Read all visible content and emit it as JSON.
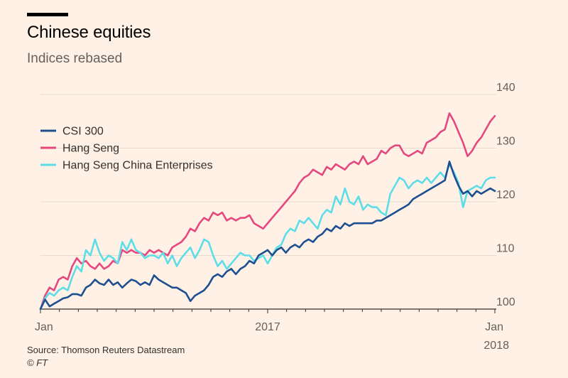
{
  "header": {
    "title": "Chinese equities",
    "subtitle": "Indices rebased"
  },
  "footer": {
    "source": "Source: Thomson Reuters Datastream",
    "credit": "© FT"
  },
  "chart_data": {
    "type": "line",
    "title": "Chinese equities",
    "subtitle": "Indices rebased",
    "xlabel": "",
    "ylabel": "",
    "ylim": [
      100,
      140
    ],
    "y_ticks": [
      100,
      110,
      120,
      130,
      140
    ],
    "xlim": [
      0,
      2
    ],
    "x_ticks": [
      {
        "value": 0,
        "label": "Jan",
        "label2": ""
      },
      {
        "value": 1,
        "label": "2017",
        "label2": ""
      },
      {
        "value": 2,
        "label": "Jan",
        "label2": "2018"
      }
    ],
    "grid": "horizontal",
    "legend_position": "top-left",
    "series": [
      {
        "name": "CSI 300",
        "color": "#1d4f91",
        "x": [
          0,
          0.02,
          0.04,
          0.06,
          0.08,
          0.1,
          0.12,
          0.14,
          0.16,
          0.18,
          0.2,
          0.22,
          0.24,
          0.26,
          0.28,
          0.3,
          0.32,
          0.34,
          0.36,
          0.38,
          0.4,
          0.42,
          0.44,
          0.46,
          0.48,
          0.5,
          0.52,
          0.54,
          0.56,
          0.58,
          0.6,
          0.62,
          0.64,
          0.66,
          0.68,
          0.7,
          0.72,
          0.74,
          0.76,
          0.78,
          0.8,
          0.82,
          0.84,
          0.86,
          0.88,
          0.9,
          0.92,
          0.94,
          0.96,
          0.98,
          1.0,
          1.02,
          1.04,
          1.06,
          1.08,
          1.1,
          1.12,
          1.14,
          1.16,
          1.18,
          1.2,
          1.22,
          1.24,
          1.26,
          1.28,
          1.3,
          1.32,
          1.34,
          1.36,
          1.38,
          1.4,
          1.42,
          1.44,
          1.46,
          1.48,
          1.5,
          1.52,
          1.54,
          1.56,
          1.58,
          1.6,
          1.62,
          1.64,
          1.66,
          1.68,
          1.7,
          1.72,
          1.74,
          1.76,
          1.78,
          1.8,
          1.82,
          1.84,
          1.86,
          1.88,
          1.9,
          1.92,
          1.94,
          1.96,
          1.98,
          2.0
        ],
        "values": [
          100,
          101.8,
          100.5,
          101,
          101.5,
          102,
          102.2,
          102.8,
          102.8,
          102.5,
          104,
          104.5,
          105.5,
          104.8,
          104.5,
          105.5,
          104.5,
          105,
          104,
          104.8,
          105.5,
          105.2,
          104.5,
          105,
          104.5,
          106.3,
          105.5,
          105,
          104.5,
          104,
          104,
          103.5,
          103,
          101.5,
          102.5,
          103,
          103.5,
          104.5,
          106,
          106.5,
          106,
          107,
          107.5,
          106.5,
          107.5,
          108,
          109,
          108.5,
          110,
          110.5,
          111,
          110,
          111,
          111.5,
          110.5,
          111.5,
          112,
          111.5,
          112.5,
          113,
          112.5,
          113.5,
          114,
          115,
          114.5,
          115.5,
          115,
          116,
          115.5,
          116,
          116,
          116,
          116,
          116,
          116.5,
          116.5,
          117,
          117.5,
          118,
          118.5,
          119,
          119.5,
          120.5,
          121,
          121.5,
          122,
          122.5,
          123,
          123.5,
          124,
          127.5,
          125,
          123,
          121.5,
          122,
          121,
          122,
          121.5,
          122,
          122.5,
          122
        ]
      },
      {
        "name": "Hang Seng",
        "color": "#e5487f",
        "x": [
          0,
          0.02,
          0.04,
          0.06,
          0.08,
          0.1,
          0.12,
          0.14,
          0.16,
          0.18,
          0.2,
          0.22,
          0.24,
          0.26,
          0.28,
          0.3,
          0.32,
          0.34,
          0.36,
          0.38,
          0.4,
          0.42,
          0.44,
          0.46,
          0.48,
          0.5,
          0.52,
          0.54,
          0.56,
          0.58,
          0.6,
          0.62,
          0.64,
          0.66,
          0.68,
          0.7,
          0.72,
          0.74,
          0.76,
          0.78,
          0.8,
          0.82,
          0.84,
          0.86,
          0.88,
          0.9,
          0.92,
          0.94,
          0.96,
          0.98,
          1.0,
          1.02,
          1.04,
          1.06,
          1.08,
          1.1,
          1.12,
          1.14,
          1.16,
          1.18,
          1.2,
          1.22,
          1.24,
          1.26,
          1.28,
          1.3,
          1.32,
          1.34,
          1.36,
          1.38,
          1.4,
          1.42,
          1.44,
          1.46,
          1.48,
          1.5,
          1.52,
          1.54,
          1.56,
          1.58,
          1.6,
          1.62,
          1.64,
          1.66,
          1.68,
          1.7,
          1.72,
          1.74,
          1.76,
          1.78,
          1.8,
          1.82,
          1.84,
          1.86,
          1.88,
          1.9,
          1.92,
          1.94,
          1.96,
          1.98,
          2.0
        ],
        "values": [
          100,
          102.5,
          104,
          103.5,
          105.5,
          106,
          105.5,
          108,
          109.5,
          108.5,
          109,
          108,
          107.5,
          108.5,
          107.5,
          108,
          109,
          108.5,
          111,
          110.5,
          111,
          110.5,
          110.5,
          110,
          111,
          110.5,
          111,
          110.5,
          110,
          111.5,
          112,
          112.5,
          113.5,
          115,
          114.5,
          116,
          117,
          116.5,
          118,
          117.5,
          118,
          116.5,
          117,
          116.5,
          117,
          117,
          117.5,
          116,
          115.5,
          115,
          116,
          117,
          118,
          119,
          120,
          121,
          122,
          123.5,
          124.5,
          125,
          126,
          125.5,
          125,
          126.5,
          126,
          127,
          126.5,
          126,
          127,
          127.5,
          127,
          128.5,
          127,
          127.5,
          128,
          129.5,
          129,
          130,
          130.5,
          130.5,
          129,
          128.5,
          129,
          129.5,
          129,
          131,
          131.5,
          132,
          133,
          133.5,
          136.5,
          135,
          133,
          131,
          128.5,
          129.5,
          131,
          132,
          133.5,
          135,
          136
        ]
      },
      {
        "name": "Hang Seng China Enterprises",
        "color": "#5ddde8",
        "x": [
          0,
          0.02,
          0.04,
          0.06,
          0.08,
          0.1,
          0.12,
          0.14,
          0.16,
          0.18,
          0.2,
          0.22,
          0.24,
          0.26,
          0.28,
          0.3,
          0.32,
          0.34,
          0.36,
          0.38,
          0.4,
          0.42,
          0.44,
          0.46,
          0.48,
          0.5,
          0.52,
          0.54,
          0.56,
          0.58,
          0.6,
          0.62,
          0.64,
          0.66,
          0.68,
          0.7,
          0.72,
          0.74,
          0.76,
          0.78,
          0.8,
          0.82,
          0.84,
          0.86,
          0.88,
          0.9,
          0.92,
          0.94,
          0.96,
          0.98,
          1.0,
          1.02,
          1.04,
          1.06,
          1.08,
          1.1,
          1.12,
          1.14,
          1.16,
          1.18,
          1.2,
          1.22,
          1.24,
          1.26,
          1.28,
          1.3,
          1.32,
          1.34,
          1.36,
          1.38,
          1.4,
          1.42,
          1.44,
          1.46,
          1.48,
          1.5,
          1.52,
          1.54,
          1.56,
          1.58,
          1.6,
          1.62,
          1.64,
          1.66,
          1.68,
          1.7,
          1.72,
          1.74,
          1.76,
          1.78,
          1.8,
          1.82,
          1.84,
          1.86,
          1.88,
          1.9,
          1.92,
          1.94,
          1.96,
          1.98,
          2.0
        ],
        "values": [
          100,
          102,
          103,
          102.5,
          103.5,
          104,
          103.5,
          106,
          108,
          107,
          111,
          110,
          113,
          110.5,
          109,
          110,
          109.5,
          108.5,
          112.5,
          111,
          113,
          111,
          110.5,
          109.5,
          110,
          110,
          109.5,
          110.5,
          108.5,
          110,
          108,
          109.5,
          110.5,
          111.5,
          109.5,
          111,
          113,
          112.5,
          110,
          108,
          109,
          107.5,
          108.5,
          109.5,
          110.5,
          110,
          110,
          109,
          109.5,
          110,
          108.5,
          110,
          111.5,
          112,
          114,
          115,
          114.5,
          116.5,
          116,
          117,
          116,
          115,
          117.5,
          118.5,
          118,
          121,
          119.5,
          122.5,
          120,
          119.5,
          121,
          118.5,
          119.5,
          119,
          119,
          118,
          117.5,
          121.5,
          123,
          124.5,
          124,
          122.5,
          123.5,
          124,
          123.5,
          124.5,
          123.5,
          124.5,
          125.5,
          124.5,
          127,
          125.5,
          123.5,
          119,
          122,
          122.5,
          123,
          122.5,
          124,
          124.5,
          124.5
        ]
      }
    ]
  }
}
